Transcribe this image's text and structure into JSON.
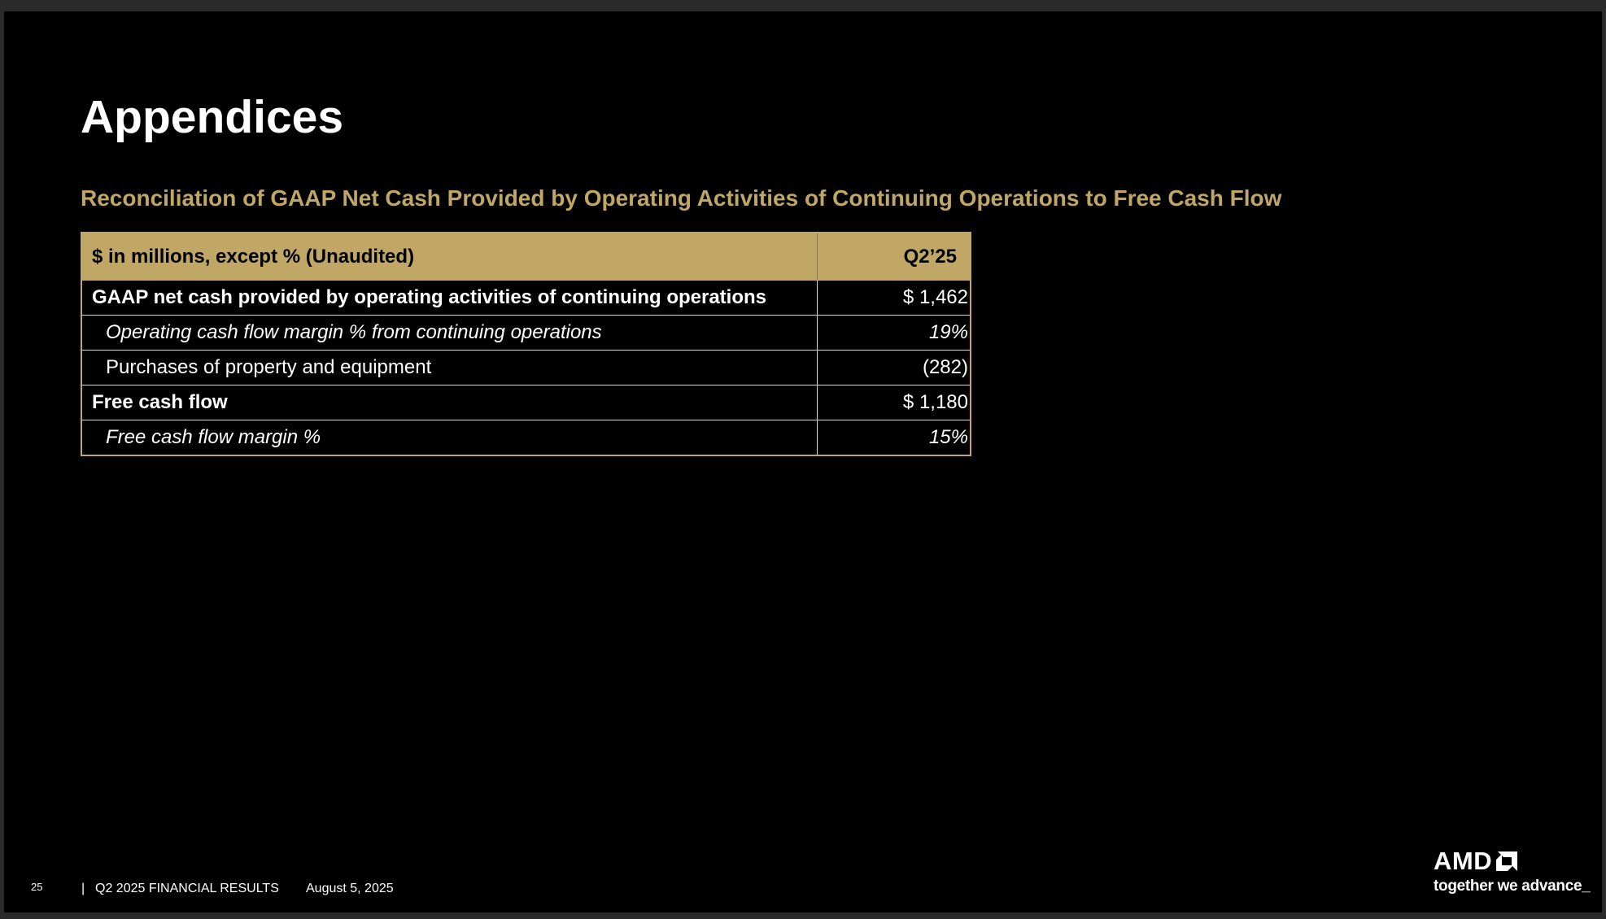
{
  "slide": {
    "title": "Appendices",
    "subtitle": "Reconciliation of GAAP Net Cash Provided by Operating Activities of Continuing Operations to Free Cash Flow"
  },
  "table": {
    "header": {
      "label": "$ in millions, except % (Unaudited)",
      "period": "Q2’25"
    },
    "rows": [
      {
        "label": "GAAP net cash provided by operating activities of continuing operations",
        "value": "$ 1,462"
      },
      {
        "label": "Operating cash flow margin % from continuing operations",
        "value": "19%"
      },
      {
        "label": "Purchases of property and equipment",
        "value": "(282)"
      },
      {
        "label": "Free cash flow",
        "value": "$ 1,180"
      },
      {
        "label": "Free cash flow margin %",
        "value": "15%"
      }
    ]
  },
  "footer": {
    "page_number": "25",
    "separator": "|",
    "report_title": "Q2 2025 FINANCIAL RESULTS",
    "date": "August 5, 2025"
  },
  "branding": {
    "logo_text": "AMD",
    "logo_icon": "amd-arrow-icon",
    "tagline": "together we advance_"
  },
  "colors": {
    "background": "#000000",
    "accent_gold": "#c0a766",
    "text": "#ffffff"
  }
}
